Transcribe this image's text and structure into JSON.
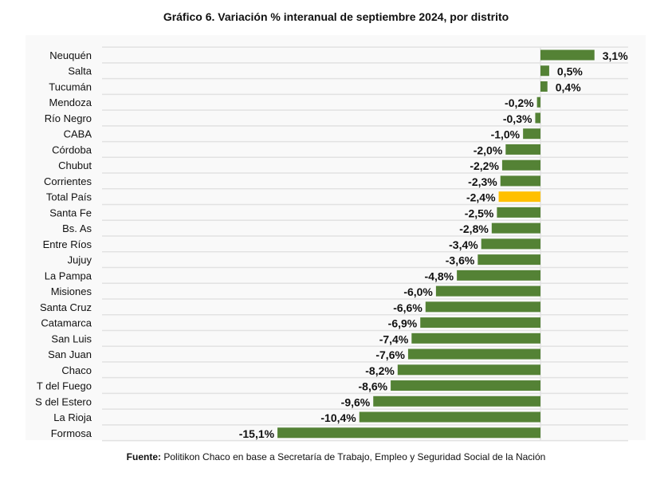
{
  "chart_data": {
    "type": "bar",
    "orientation": "horizontal",
    "title": "Gráfico 6. Variación % interanual de septiembre 2024, por distrito",
    "categories": [
      "Neuquén",
      "Salta",
      "Tucumán",
      "Mendoza",
      "Río Negro",
      "CABA",
      "Córdoba",
      "Chubut",
      "Corrientes",
      "Total País",
      "Santa Fe",
      "Bs. As",
      "Entre Ríos",
      "Jujuy",
      "La Pampa",
      "Misiones",
      "Santa Cruz",
      "Catamarca",
      "San Luis",
      "San Juan",
      "Chaco",
      "T del Fuego",
      "S del Estero",
      "La Rioja",
      "Formosa"
    ],
    "values": [
      3.1,
      0.5,
      0.4,
      -0.2,
      -0.3,
      -1.0,
      -2.0,
      -2.2,
      -2.3,
      -2.4,
      -2.5,
      -2.8,
      -3.4,
      -3.6,
      -4.8,
      -6.0,
      -6.6,
      -6.9,
      -7.4,
      -7.6,
      -8.2,
      -8.6,
      -9.6,
      -10.4,
      -15.1
    ],
    "labels": [
      "3,1%",
      "0,5%",
      "0,4%",
      "-0,2%",
      "-0,3%",
      "-1,0%",
      "-2,0%",
      "-2,2%",
      "-2,3%",
      "-2,4%",
      "-2,5%",
      "-2,8%",
      "-3,4%",
      "-3,6%",
      "-4,8%",
      "-6,0%",
      "-6,6%",
      "-6,9%",
      "-7,4%",
      "-7,6%",
      "-8,2%",
      "-8,6%",
      "-9,6%",
      "-10,4%",
      "-15,1%"
    ],
    "highlight": "Total País",
    "xlim": [
      -15.1,
      3.1
    ],
    "xlabel": "",
    "ylabel": "",
    "grid": true,
    "colors": {
      "default": "#548235",
      "highlight": "#FFC000",
      "grid": "#e2e2e2"
    }
  },
  "source": {
    "prefix": "Fuente:",
    "text": " Politikon Chaco en base a Secretaría de Trabajo, Empleo y Seguridad Social de la Nación"
  }
}
